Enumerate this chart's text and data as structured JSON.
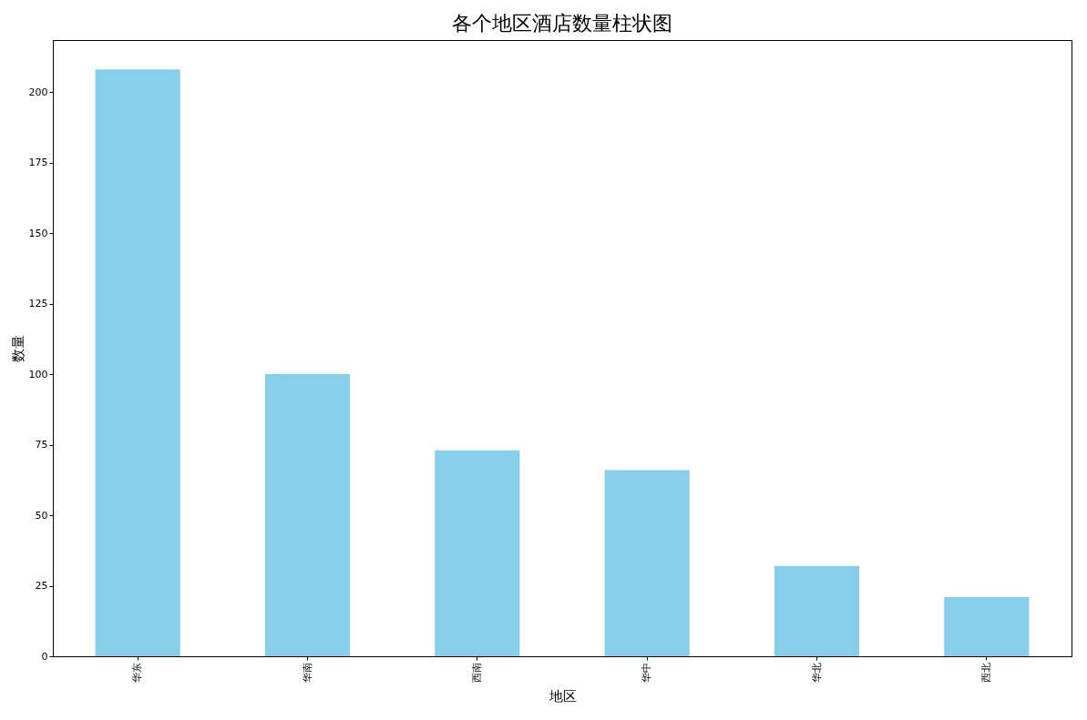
{
  "chart_data": {
    "type": "bar",
    "title": "各个地区酒店数量柱状图",
    "xlabel": "地区",
    "ylabel": "数量",
    "categories": [
      "华东",
      "华南",
      "西南",
      "华中",
      "华北",
      "西北"
    ],
    "values": [
      208,
      100,
      73,
      66,
      32,
      21
    ],
    "color": "#87ceeb",
    "ylim": [
      0,
      218.4
    ],
    "yticks": [
      0,
      25,
      50,
      75,
      100,
      125,
      150,
      175,
      200
    ],
    "grid": false
  }
}
